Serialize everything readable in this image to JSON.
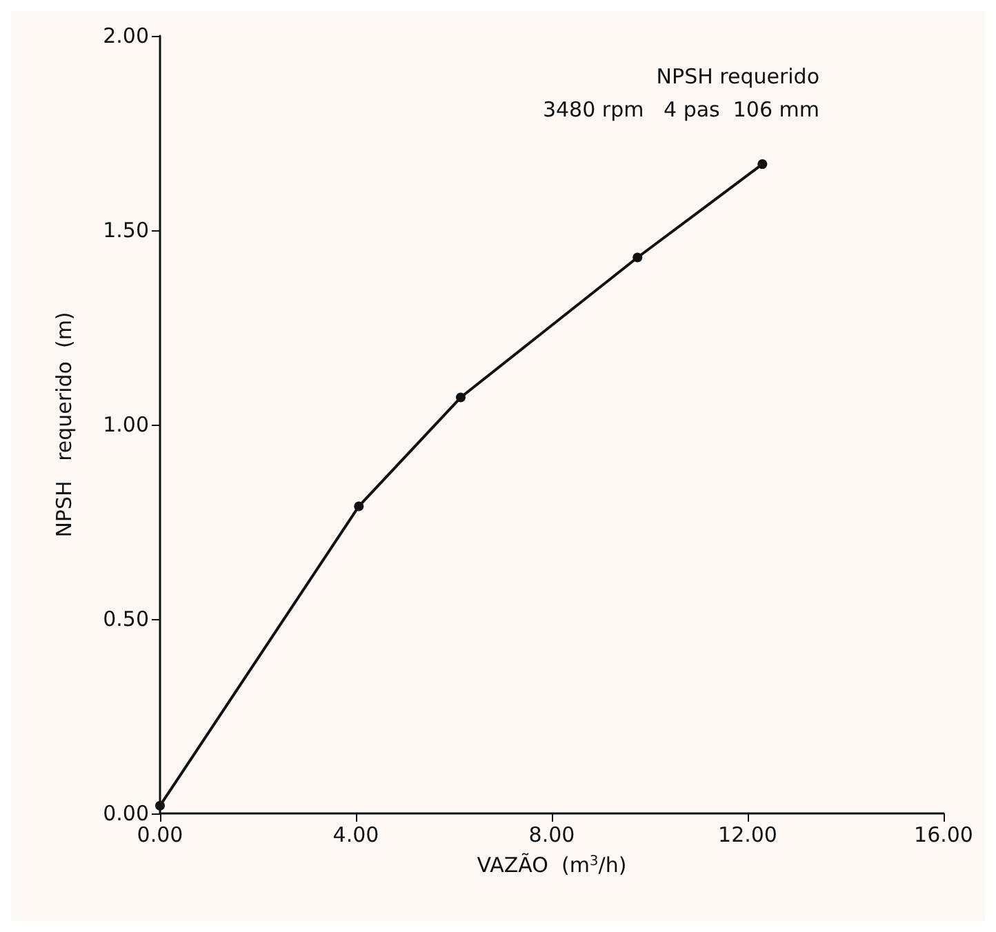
{
  "chart_data": {
    "type": "line",
    "annotations": [
      "NPSH requerido",
      "3480 rpm   4 pas  106 mm"
    ],
    "xlabel": "VAZÃO  (m$^{3}$/h)",
    "ylabel": "NPSH   requerido  (m)",
    "x": [
      0,
      4.06,
      6.14,
      9.75,
      12.3
    ],
    "series": [
      {
        "color": "#111111",
        "values": [
          0.02,
          0.79,
          1.07,
          1.43,
          1.67
        ]
      }
    ],
    "xlim": [
      0,
      16
    ],
    "xticks": [
      {
        "value": 0,
        "label": "0.00"
      },
      {
        "value": 4,
        "label": "4.00"
      },
      {
        "value": 8,
        "label": "8.00"
      },
      {
        "value": 12,
        "label": "12.00"
      },
      {
        "value": 16,
        "label": "16.00"
      }
    ],
    "ylim": [
      0,
      2
    ],
    "yticks": [
      {
        "value": 0,
        "label": "0.00"
      },
      {
        "value": 0.5,
        "label": "0.50"
      },
      {
        "value": 1,
        "label": "1.00"
      },
      {
        "value": 1.5,
        "label": "1.50"
      },
      {
        "value": 2,
        "label": "2.00"
      }
    ],
    "grid": false,
    "marker": "circle",
    "line_style": "solid"
  }
}
